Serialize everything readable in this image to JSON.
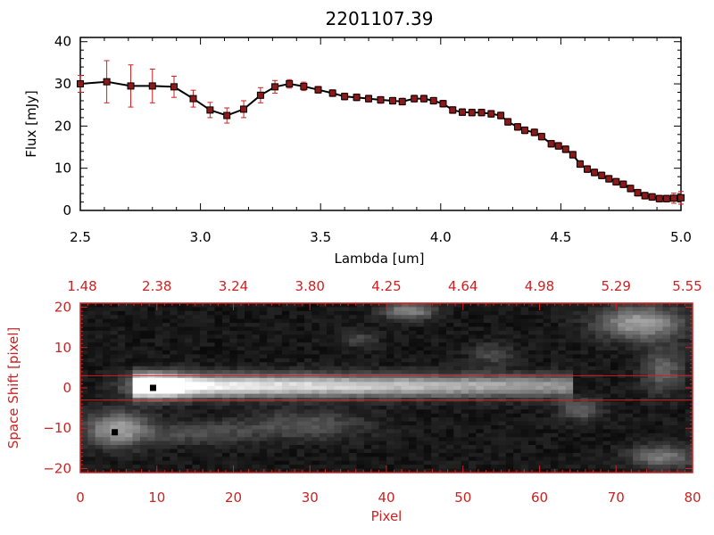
{
  "chart_data": [
    {
      "type": "line",
      "title": "2201107.39",
      "xlabel": "Lambda [um]",
      "ylabel": "Flux [mJy]",
      "xlim": [
        2.5,
        5.0
      ],
      "ylim": [
        0,
        41
      ],
      "xticks": [
        2.5,
        3.0,
        3.5,
        4.0,
        4.5,
        5.0
      ],
      "xtick_labels": [
        "2.5",
        "3.0",
        "3.5",
        "4.0",
        "4.5",
        "5.0"
      ],
      "yticks": [
        0,
        10,
        20,
        30,
        40
      ],
      "ytick_labels": [
        "0",
        "10",
        "20",
        "30",
        "40"
      ],
      "grid": false,
      "series": [
        {
          "line_color": "#000000",
          "marker_color": "#8b1a1a",
          "error_color": "#cc2222",
          "x": [
            2.5,
            2.61,
            2.71,
            2.8,
            2.89,
            2.97,
            3.04,
            3.11,
            3.18,
            3.25,
            3.31,
            3.37,
            3.43,
            3.49,
            3.55,
            3.6,
            3.65,
            3.7,
            3.75,
            3.8,
            3.84,
            3.89,
            3.93,
            3.97,
            4.01,
            4.05,
            4.09,
            4.13,
            4.17,
            4.21,
            4.25,
            4.28,
            4.32,
            4.35,
            4.39,
            4.42,
            4.46,
            4.49,
            4.52,
            4.55,
            4.58,
            4.61,
            4.64,
            4.67,
            4.7,
            4.73,
            4.76,
            4.79,
            4.82,
            4.85,
            4.88,
            4.91,
            4.94,
            4.97,
            5.0
          ],
          "y": [
            30,
            30.5,
            29.5,
            29.5,
            29.3,
            26.5,
            23.8,
            22.5,
            24,
            27.3,
            29.3,
            30,
            29.4,
            28.6,
            27.8,
            27,
            26.8,
            26.5,
            26.2,
            26,
            25.8,
            26.5,
            26.5,
            26,
            25.3,
            23.8,
            23.3,
            23.2,
            23.2,
            22.9,
            22.5,
            21,
            19.8,
            19,
            18.5,
            17.5,
            15.8,
            15.3,
            14.5,
            13.2,
            11,
            9.8,
            9,
            8.3,
            7.5,
            6.8,
            6.2,
            5.2,
            4.2,
            3.5,
            3.2,
            2.8,
            2.8,
            2.9,
            3.0
          ],
          "yerr": [
            2,
            5,
            5,
            4,
            2.5,
            2,
            1.8,
            1.8,
            2,
            1.8,
            1.5,
            1,
            1,
            0.8,
            0.8,
            0.8,
            0.8,
            0.8,
            0.8,
            0.8,
            0.8,
            0.8,
            0.8,
            0.8,
            0.8,
            0.8,
            0.8,
            0.8,
            0.8,
            0.8,
            0.8,
            0.8,
            0.8,
            0.8,
            0.8,
            0.8,
            0.8,
            0.8,
            0.8,
            0.8,
            0.8,
            0.8,
            0.8,
            0.8,
            0.8,
            0.8,
            0.8,
            0.8,
            0.8,
            0.8,
            0.8,
            0.8,
            0.8,
            1.2,
            1.5
          ]
        }
      ]
    },
    {
      "type": "heatmap",
      "xlabel": "Pixel",
      "ylabel": "Space Shift [pixel]",
      "xlim": [
        0,
        80
      ],
      "ylim": [
        -21,
        21
      ],
      "xticks": [
        0,
        10,
        20,
        30,
        40,
        50,
        60,
        70,
        80
      ],
      "xtick_labels": [
        "0",
        "10",
        "20",
        "30",
        "40",
        "50",
        "60",
        "70",
        "80"
      ],
      "yticks": [
        -20,
        -10,
        0,
        10,
        20
      ],
      "ytick_labels": [
        "−20",
        "−10",
        "0",
        "10",
        "20"
      ],
      "top_ticks": [
        0,
        10,
        20,
        30,
        40,
        50,
        60,
        70,
        80
      ],
      "top_tick_labels": [
        "1.48",
        "2.38",
        "3.24",
        "3.80",
        "4.25",
        "4.64",
        "4.98",
        "5.29",
        "5.55"
      ],
      "axis_color": "#cc2222",
      "extraction_lines": [
        3,
        -3
      ],
      "markers": [
        {
          "x": 9.5,
          "y": 0
        },
        {
          "x": 4.5,
          "y": -11
        }
      ],
      "colormap": "gray"
    }
  ]
}
